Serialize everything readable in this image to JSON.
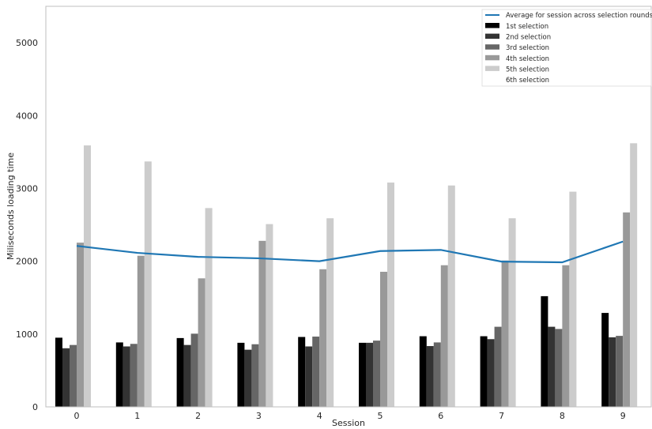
{
  "chart_data": {
    "type": "bar",
    "xlabel": "Session",
    "ylabel": "Miliseconds loading time",
    "categories": [
      "0",
      "1",
      "2",
      "3",
      "4",
      "5",
      "6",
      "7",
      "8",
      "9"
    ],
    "ylim": [
      0,
      5500
    ],
    "yticks": [
      "0",
      "1000",
      "2000",
      "3000",
      "4000",
      "5000"
    ],
    "ytick_values": [
      0,
      1000,
      2000,
      3000,
      4000,
      5000
    ],
    "grid": false,
    "legend_position": "top-right",
    "series": [
      {
        "name": "1st selection",
        "color": "#000000",
        "values": [
          950,
          885,
          945,
          880,
          960,
          880,
          970,
          970,
          1520,
          1290
        ]
      },
      {
        "name": "2nd selection",
        "color": "#333333",
        "values": [
          805,
          830,
          850,
          785,
          830,
          880,
          835,
          930,
          1100,
          955
        ]
      },
      {
        "name": "3rd selection",
        "color": "#666666",
        "values": [
          850,
          865,
          1005,
          860,
          965,
          910,
          885,
          1100,
          1070,
          975
        ]
      },
      {
        "name": "4th selection",
        "color": "#999999",
        "values": [
          2255,
          2075,
          1765,
          2280,
          1890,
          1855,
          1945,
          2010,
          1945,
          2670
        ]
      },
      {
        "name": "5th selection",
        "color": "#cccccc",
        "values": [
          3590,
          3370,
          2730,
          2510,
          2590,
          3080,
          3040,
          2590,
          2955,
          3620
        ]
      },
      {
        "name": "6th selection",
        "color": "#ffffff",
        "values": [
          0,
          0,
          0,
          0,
          0,
          0,
          0,
          0,
          0,
          0
        ]
      }
    ],
    "line": {
      "name": "Average for session across selection rounds",
      "color": "#1f77b4",
      "values": [
        2210,
        2115,
        2060,
        2040,
        2000,
        2140,
        2155,
        1995,
        1985,
        2270
      ]
    }
  }
}
